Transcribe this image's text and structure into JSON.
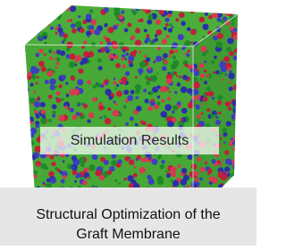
{
  "image_label": "Simulation Results",
  "caption": {
    "line1": "Structural Optimization of the",
    "line2": "Graft Membrane"
  }
}
